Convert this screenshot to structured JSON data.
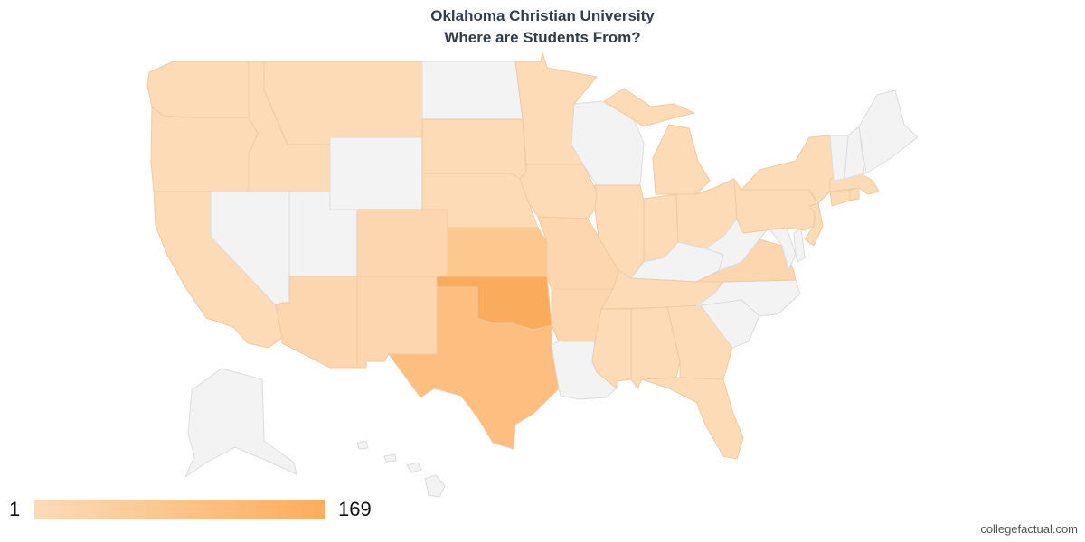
{
  "title": {
    "line1": "Oklahoma Christian University",
    "line2": "Where are Students From?"
  },
  "legend": {
    "min_label": "1",
    "max_label": "169",
    "min_color": "#fddbb7",
    "max_color": "#fbad5e"
  },
  "watermark": "collegefactual.com",
  "colors": {
    "no_data": "#f3f3f3",
    "low": "#fddbb7",
    "light": "#fcd6ae",
    "medium": "#fcc88e",
    "high": "#fdbe80",
    "max": "#fbab5c",
    "border_no_data": "#dcdcdc",
    "border_data": "#efcaa2"
  },
  "states": {
    "WA": "low",
    "OR": "low",
    "CA": "low",
    "ID": "low",
    "NV": "no_data",
    "MT": "low",
    "WY": "no_data",
    "UT": "no_data",
    "AZ": "light",
    "CO": "light",
    "NM": "light",
    "ND": "no_data",
    "SD": "low",
    "NE": "low",
    "KS": "medium",
    "OK": "max",
    "TX": "high",
    "MN": "low",
    "IA": "low",
    "MO": "light",
    "AR": "light",
    "LA": "no_data",
    "WI": "no_data",
    "IL": "low",
    "MI": "low",
    "IN": "low",
    "OH": "low",
    "KY": "no_data",
    "TN": "low",
    "MS": "low",
    "AL": "low",
    "GA": "low",
    "FL": "low",
    "SC": "no_data",
    "NC": "no_data",
    "VA": "light",
    "WV": "no_data",
    "MD": "no_data",
    "DE": "no_data",
    "PA": "low",
    "NJ": "low",
    "NY": "low",
    "CT": "low",
    "RI": "low",
    "MA": "low",
    "VT": "no_data",
    "NH": "no_data",
    "ME": "no_data",
    "AK": "no_data",
    "HI": "no_data"
  }
}
